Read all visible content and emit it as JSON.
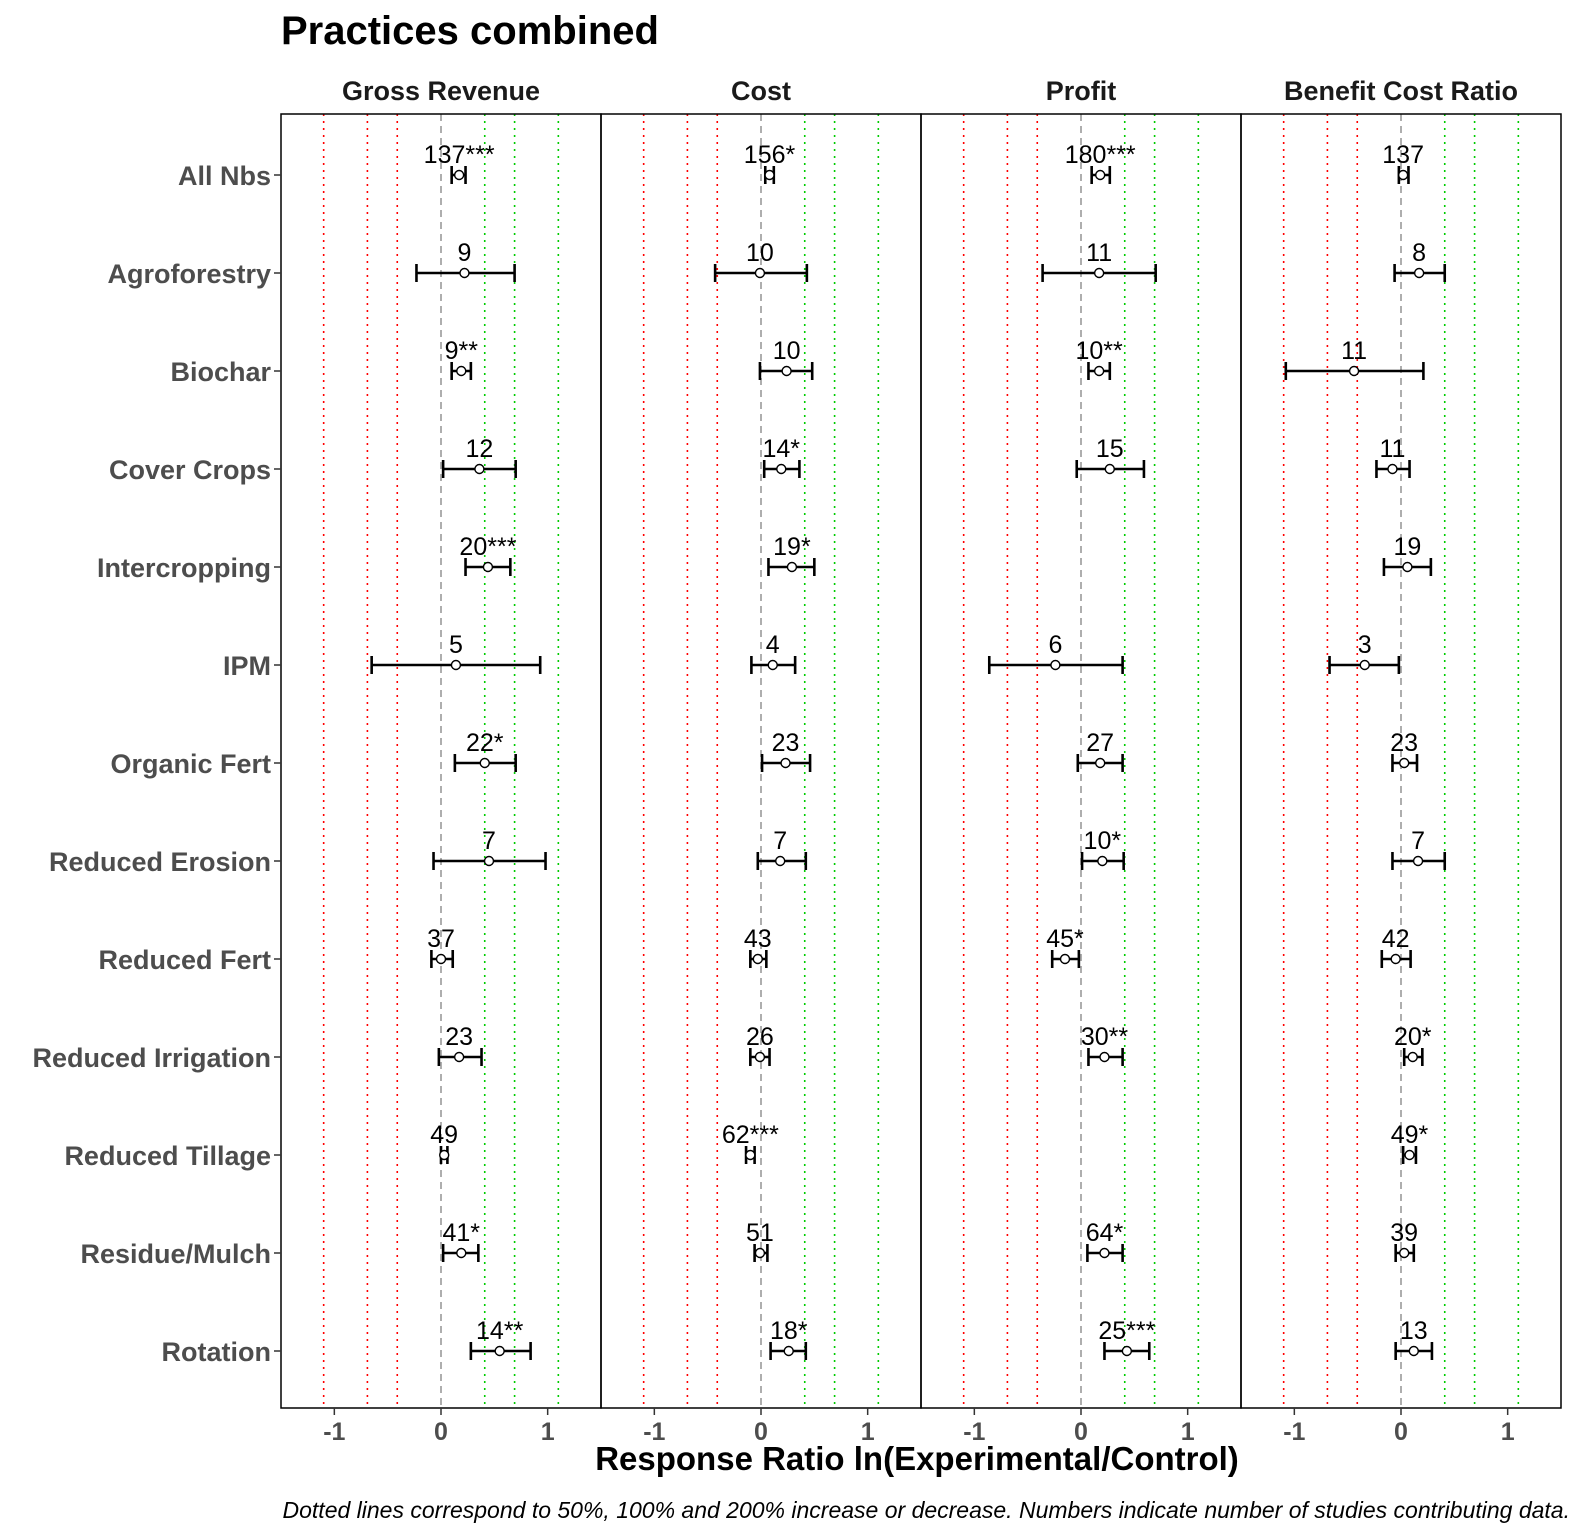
{
  "chart_data": {
    "type": "forest",
    "title": "Practices combined",
    "xlabel": "Response Ratio ln(Experimental/Control)",
    "caption": "Dotted lines correspond to 50%, 100% and 200% increase or decrease. Numbers indicate number of studies contributing data.",
    "xlim": [
      -1.5,
      1.5
    ],
    "x_ticks": [
      -1,
      0,
      1
    ],
    "x_tick_labels": [
      "-1",
      "0",
      "1"
    ],
    "zero_line": 0,
    "reference_lines": {
      "decrease": [
        -1.1,
        -0.69,
        -0.41
      ],
      "increase": [
        0.41,
        0.69,
        1.1
      ],
      "decrease_color": "#ff0000",
      "increase_color": "#00cc00",
      "zero_color": "#a6a6a6"
    },
    "categories": [
      "All Nbs",
      "Agroforestry",
      "Biochar",
      "Cover Crops",
      "Intercropping",
      "IPM",
      "Organic Fert",
      "Reduced Erosion",
      "Reduced Fert",
      "Reduced Irrigation",
      "Reduced Tillage",
      "Residue/Mulch",
      "Rotation"
    ],
    "panels": [
      {
        "name": "Gross Revenue",
        "estimates": [
          {
            "category": "All Nbs",
            "mean": 0.17,
            "lower": 0.1,
            "upper": 0.23,
            "label": "137***"
          },
          {
            "category": "Agroforestry",
            "mean": 0.22,
            "lower": -0.23,
            "upper": 0.69,
            "label": "9"
          },
          {
            "category": "Biochar",
            "mean": 0.19,
            "lower": 0.1,
            "upper": 0.28,
            "label": "9**"
          },
          {
            "category": "Cover Crops",
            "mean": 0.36,
            "lower": 0.02,
            "upper": 0.7,
            "label": "12"
          },
          {
            "category": "Intercropping",
            "mean": 0.44,
            "lower": 0.23,
            "upper": 0.65,
            "label": "20***"
          },
          {
            "category": "IPM",
            "mean": 0.14,
            "lower": -0.65,
            "upper": 0.93,
            "label": "5"
          },
          {
            "category": "Organic Fert",
            "mean": 0.41,
            "lower": 0.13,
            "upper": 0.7,
            "label": "22*"
          },
          {
            "category": "Reduced Erosion",
            "mean": 0.45,
            "lower": -0.07,
            "upper": 0.98,
            "label": "7"
          },
          {
            "category": "Reduced Fert",
            "mean": 0.0,
            "lower": -0.09,
            "upper": 0.11,
            "label": "37"
          },
          {
            "category": "Reduced Irrigation",
            "mean": 0.17,
            "lower": -0.02,
            "upper": 0.38,
            "label": "23"
          },
          {
            "category": "Reduced Tillage",
            "mean": 0.03,
            "lower": 0.0,
            "upper": 0.06,
            "label": "49"
          },
          {
            "category": "Residue/Mulch",
            "mean": 0.19,
            "lower": 0.02,
            "upper": 0.35,
            "label": "41*"
          },
          {
            "category": "Rotation",
            "mean": 0.55,
            "lower": 0.28,
            "upper": 0.84,
            "label": "14**"
          }
        ]
      },
      {
        "name": "Cost",
        "estimates": [
          {
            "category": "All Nbs",
            "mean": 0.08,
            "lower": 0.04,
            "upper": 0.12,
            "label": "156*"
          },
          {
            "category": "Agroforestry",
            "mean": -0.01,
            "lower": -0.43,
            "upper": 0.43,
            "label": "10"
          },
          {
            "category": "Biochar",
            "mean": 0.24,
            "lower": -0.01,
            "upper": 0.48,
            "label": "10"
          },
          {
            "category": "Cover Crops",
            "mean": 0.19,
            "lower": 0.03,
            "upper": 0.36,
            "label": "14*"
          },
          {
            "category": "Intercropping",
            "mean": 0.29,
            "lower": 0.07,
            "upper": 0.5,
            "label": "19*"
          },
          {
            "category": "IPM",
            "mean": 0.11,
            "lower": -0.09,
            "upper": 0.32,
            "label": "4"
          },
          {
            "category": "Organic Fert",
            "mean": 0.23,
            "lower": 0.01,
            "upper": 0.46,
            "label": "23"
          },
          {
            "category": "Reduced Erosion",
            "mean": 0.18,
            "lower": -0.03,
            "upper": 0.42,
            "label": "7"
          },
          {
            "category": "Reduced Fert",
            "mean": -0.03,
            "lower": -0.1,
            "upper": 0.05,
            "label": "43"
          },
          {
            "category": "Reduced Irrigation",
            "mean": -0.01,
            "lower": -0.1,
            "upper": 0.08,
            "label": "26"
          },
          {
            "category": "Reduced Tillage",
            "mean": -0.1,
            "lower": -0.14,
            "upper": -0.06,
            "label": "62***"
          },
          {
            "category": "Residue/Mulch",
            "mean": -0.01,
            "lower": -0.06,
            "upper": 0.06,
            "label": "51"
          },
          {
            "category": "Rotation",
            "mean": 0.26,
            "lower": 0.09,
            "upper": 0.42,
            "label": "18*"
          }
        ]
      },
      {
        "name": "Profit",
        "estimates": [
          {
            "category": "All Nbs",
            "mean": 0.18,
            "lower": 0.1,
            "upper": 0.27,
            "label": "180***"
          },
          {
            "category": "Agroforestry",
            "mean": 0.17,
            "lower": -0.36,
            "upper": 0.7,
            "label": "11"
          },
          {
            "category": "Biochar",
            "mean": 0.17,
            "lower": 0.07,
            "upper": 0.27,
            "label": "10**"
          },
          {
            "category": "Cover Crops",
            "mean": 0.27,
            "lower": -0.04,
            "upper": 0.59,
            "label": "15"
          },
          {
            "category": "IPM",
            "mean": -0.24,
            "lower": -0.86,
            "upper": 0.39,
            "label": "6"
          },
          {
            "category": "Organic Fert",
            "mean": 0.18,
            "lower": -0.03,
            "upper": 0.39,
            "label": "27"
          },
          {
            "category": "Reduced Erosion",
            "mean": 0.2,
            "lower": 0.01,
            "upper": 0.4,
            "label": "10*"
          },
          {
            "category": "Reduced Fert",
            "mean": -0.15,
            "lower": -0.27,
            "upper": -0.02,
            "label": "45*"
          },
          {
            "category": "Reduced Irrigation",
            "mean": 0.22,
            "lower": 0.07,
            "upper": 0.39,
            "label": "30**"
          },
          {
            "category": "Residue/Mulch",
            "mean": 0.22,
            "lower": 0.06,
            "upper": 0.39,
            "label": "64*"
          },
          {
            "category": "Rotation",
            "mean": 0.43,
            "lower": 0.22,
            "upper": 0.64,
            "label": "25***"
          }
        ]
      },
      {
        "name": "Benefit Cost Ratio",
        "estimates": [
          {
            "category": "All Nbs",
            "mean": 0.02,
            "lower": -0.02,
            "upper": 0.07,
            "label": "137"
          },
          {
            "category": "Agroforestry",
            "mean": 0.17,
            "lower": -0.06,
            "upper": 0.41,
            "label": "8"
          },
          {
            "category": "Biochar",
            "mean": -0.44,
            "lower": -1.08,
            "upper": 0.21,
            "label": "11"
          },
          {
            "category": "Cover Crops",
            "mean": -0.08,
            "lower": -0.23,
            "upper": 0.08,
            "label": "11"
          },
          {
            "category": "Intercropping",
            "mean": 0.06,
            "lower": -0.16,
            "upper": 0.28,
            "label": "19"
          },
          {
            "category": "IPM",
            "mean": -0.34,
            "lower": -0.67,
            "upper": -0.02,
            "label": "3"
          },
          {
            "category": "Organic Fert",
            "mean": 0.03,
            "lower": -0.08,
            "upper": 0.15,
            "label": "23"
          },
          {
            "category": "Reduced Erosion",
            "mean": 0.16,
            "lower": -0.08,
            "upper": 0.41,
            "label": "7"
          },
          {
            "category": "Reduced Fert",
            "mean": -0.05,
            "lower": -0.18,
            "upper": 0.09,
            "label": "42"
          },
          {
            "category": "Reduced Irrigation",
            "mean": 0.11,
            "lower": 0.03,
            "upper": 0.2,
            "label": "20*"
          },
          {
            "category": "Reduced Tillage",
            "mean": 0.08,
            "lower": 0.02,
            "upper": 0.14,
            "label": "49*"
          },
          {
            "category": "Residue/Mulch",
            "mean": 0.03,
            "lower": -0.05,
            "upper": 0.12,
            "label": "39"
          },
          {
            "category": "Rotation",
            "mean": 0.12,
            "lower": -0.05,
            "upper": 0.29,
            "label": "13"
          }
        ]
      }
    ]
  }
}
